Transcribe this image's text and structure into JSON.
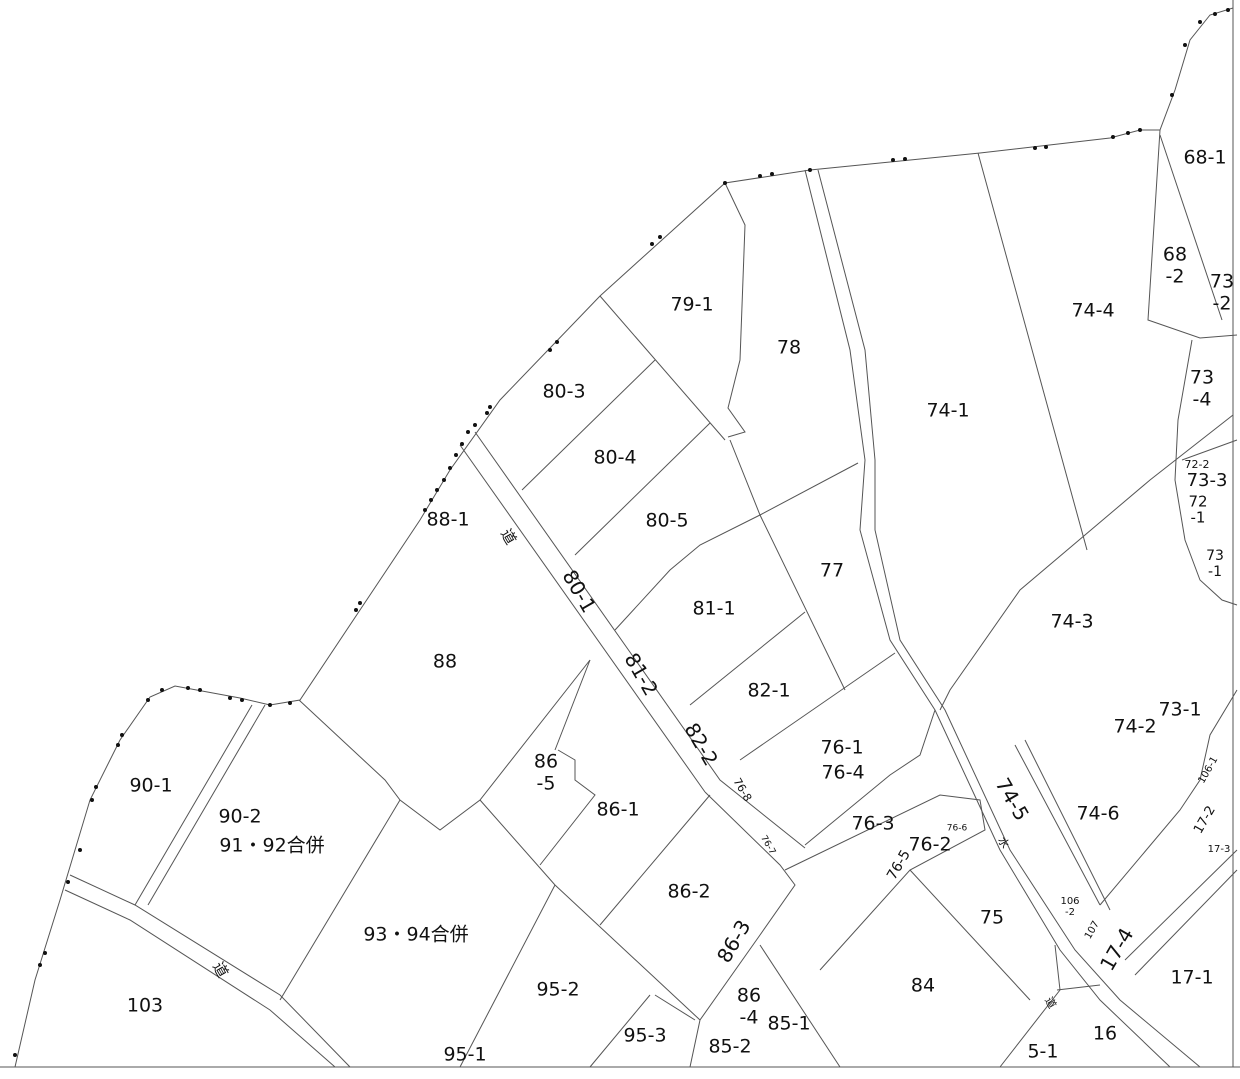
{
  "labels": [
    [
      "68-1"
    ],
    [
      "68",
      "-2"
    ],
    [
      "73",
      "-2"
    ],
    [
      "74-4"
    ],
    [
      "79-1"
    ],
    [
      "78"
    ],
    [
      "74-1"
    ],
    [
      "73",
      "-4"
    ],
    [
      "72-2"
    ],
    [
      "73-3"
    ],
    [
      "72",
      "-1"
    ],
    [
      "73",
      "-1"
    ],
    [
      "80-3"
    ],
    [
      "80-4"
    ],
    [
      "80-5"
    ],
    [
      "88-1"
    ],
    [
      "道"
    ],
    [
      "80-1"
    ],
    [
      "77"
    ],
    [
      "81-1"
    ],
    [
      "74-3"
    ],
    [
      "88"
    ],
    [
      "81-2"
    ],
    [
      "82-1"
    ],
    [
      "73-1"
    ],
    [
      "74-2"
    ],
    [
      "82-2"
    ],
    [
      "76-1"
    ],
    [
      "76-4"
    ],
    [
      "86",
      "-5"
    ],
    [
      "76-8"
    ],
    [
      "90-1"
    ],
    [
      "74-5"
    ],
    [
      "74-6"
    ],
    [
      "106-1"
    ],
    [
      "86-1"
    ],
    [
      "90-2"
    ],
    [
      "76-3"
    ],
    [
      "76-6"
    ],
    [
      "17-2"
    ],
    [
      "91・92合併"
    ],
    [
      "76-2"
    ],
    [
      "76-7"
    ],
    [
      "水"
    ],
    [
      "17-3"
    ],
    [
      "76-5"
    ],
    [
      "86-2"
    ],
    [
      "106",
      "-2"
    ],
    [
      "75"
    ],
    [
      "93・94合併"
    ],
    [
      "86-3"
    ],
    [
      "107"
    ],
    [
      "17-4"
    ],
    [
      "道"
    ],
    [
      "17-1"
    ],
    [
      "95-2"
    ],
    [
      "84"
    ],
    [
      "86",
      "-4"
    ],
    [
      "103"
    ],
    [
      "85-1"
    ],
    [
      "道"
    ],
    [
      "95-3"
    ],
    [
      "16"
    ],
    [
      "85-2"
    ],
    [
      "5-1"
    ],
    [
      "95-1"
    ]
  ]
}
